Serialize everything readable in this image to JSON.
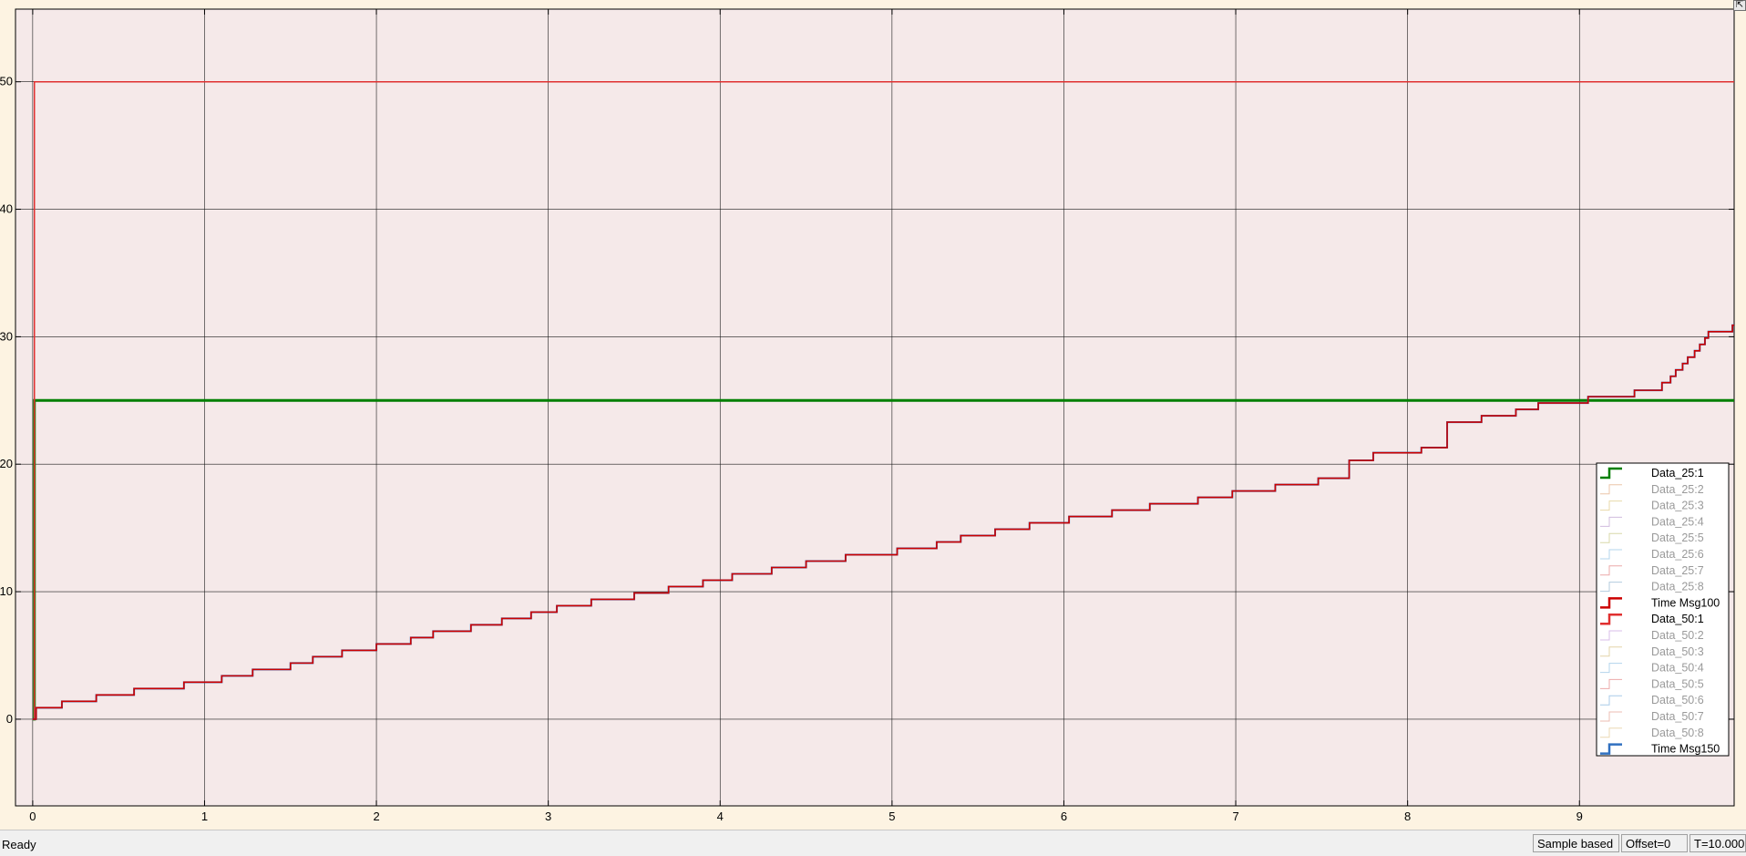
{
  "chart_data": {
    "type": "line",
    "title": "",
    "xlabel": "",
    "ylabel": "",
    "xlim": [
      -0.1,
      9.9
    ],
    "ylim": [
      -6.8,
      55.7
    ],
    "x_ticks": [
      0,
      1,
      2,
      3,
      4,
      5,
      6,
      7,
      8,
      9
    ],
    "x_tick_labels": [
      "0",
      "1",
      "2",
      "3",
      "4",
      "5",
      "6",
      "7",
      "8",
      "9"
    ],
    "y_ticks": [
      0,
      10,
      20,
      30,
      40,
      50
    ],
    "y_tick_labels": [
      "0",
      "10",
      "20",
      "30",
      "40",
      "50"
    ],
    "grid": true,
    "legend_position": "lower-right",
    "background": "#f5e9e9",
    "series": [
      {
        "name": "Data_25:1",
        "color": "#007f00",
        "width": 3,
        "active": true,
        "points": [
          [
            0,
            0
          ],
          [
            0.01,
            25
          ],
          [
            9.9,
            25
          ]
        ]
      },
      {
        "name": "Data_25:2",
        "color": "#e0a070",
        "width": 1,
        "active": false,
        "points": []
      },
      {
        "name": "Data_25:3",
        "color": "#d8c070",
        "width": 1,
        "active": false,
        "points": []
      },
      {
        "name": "Data_25:4",
        "color": "#b090c8",
        "width": 1,
        "active": false,
        "points": []
      },
      {
        "name": "Data_25:5",
        "color": "#c0c070",
        "width": 1,
        "active": false,
        "points": []
      },
      {
        "name": "Data_25:6",
        "color": "#80b8e0",
        "width": 1,
        "active": false,
        "points": []
      },
      {
        "name": "Data_25:7",
        "color": "#e07070",
        "width": 1,
        "active": false,
        "points": []
      },
      {
        "name": "Data_25:8",
        "color": "#80a8c8",
        "width": 1,
        "active": false,
        "points": []
      },
      {
        "name": "Time Msg100",
        "color": "#cc0000",
        "width": 3,
        "active": true,
        "points": [
          [
            0,
            0
          ],
          [
            0.02,
            0.9
          ],
          [
            0.17,
            1.4
          ],
          [
            0.37,
            1.9
          ],
          [
            0.59,
            2.4
          ],
          [
            0.88,
            2.9
          ],
          [
            1.1,
            3.4
          ],
          [
            1.28,
            3.9
          ],
          [
            1.5,
            4.4
          ],
          [
            1.63,
            4.9
          ],
          [
            1.8,
            5.4
          ],
          [
            2.0,
            5.9
          ],
          [
            2.2,
            6.4
          ],
          [
            2.33,
            6.9
          ],
          [
            2.55,
            7.4
          ],
          [
            2.73,
            7.9
          ],
          [
            2.9,
            8.4
          ],
          [
            3.05,
            8.9
          ],
          [
            3.25,
            9.4
          ],
          [
            3.5,
            9.9
          ],
          [
            3.7,
            10.4
          ],
          [
            3.9,
            10.9
          ],
          [
            4.07,
            11.4
          ],
          [
            4.3,
            11.9
          ],
          [
            4.5,
            12.4
          ],
          [
            4.73,
            12.9
          ],
          [
            5.03,
            13.4
          ],
          [
            5.26,
            13.9
          ],
          [
            5.4,
            14.4
          ],
          [
            5.6,
            14.9
          ],
          [
            5.8,
            15.4
          ],
          [
            6.03,
            15.9
          ],
          [
            6.28,
            16.4
          ],
          [
            6.5,
            16.9
          ],
          [
            6.78,
            17.4
          ],
          [
            6.98,
            17.9
          ],
          [
            7.23,
            18.4
          ],
          [
            7.48,
            18.9
          ],
          [
            7.66,
            20.3
          ],
          [
            7.8,
            20.9
          ],
          [
            8.08,
            21.3
          ],
          [
            8.23,
            23.3
          ],
          [
            8.43,
            23.8
          ],
          [
            8.63,
            24.3
          ],
          [
            8.76,
            24.8
          ],
          [
            9.05,
            25.3
          ],
          [
            9.32,
            25.8
          ],
          [
            9.48,
            26.4
          ],
          [
            9.53,
            26.9
          ],
          [
            9.56,
            27.4
          ],
          [
            9.6,
            27.9
          ],
          [
            9.63,
            28.4
          ],
          [
            9.67,
            28.9
          ],
          [
            9.7,
            29.4
          ],
          [
            9.73,
            29.9
          ],
          [
            9.75,
            30.4
          ],
          [
            9.89,
            30.9
          ],
          [
            9.9,
            30.9
          ]
        ]
      },
      {
        "name": "Data_50:1",
        "color": "#e03030",
        "width": 1.5,
        "active": true,
        "points": [
          [
            0,
            0
          ],
          [
            0.01,
            50
          ],
          [
            9.9,
            50
          ]
        ]
      },
      {
        "name": "Data_50:2",
        "color": "#c090d8",
        "width": 1,
        "active": false,
        "points": []
      },
      {
        "name": "Data_50:3",
        "color": "#d0b870",
        "width": 1,
        "active": false,
        "points": []
      },
      {
        "name": "Data_50:4",
        "color": "#80b8e0",
        "width": 1,
        "active": false,
        "points": []
      },
      {
        "name": "Data_50:5",
        "color": "#e07070",
        "width": 1,
        "active": false,
        "points": []
      },
      {
        "name": "Data_50:6",
        "color": "#70a8d8",
        "width": 1,
        "active": false,
        "points": []
      },
      {
        "name": "Data_50:7",
        "color": "#e09080",
        "width": 1,
        "active": false,
        "points": []
      },
      {
        "name": "Data_50:8",
        "color": "#e0c080",
        "width": 1,
        "active": false,
        "points": []
      },
      {
        "name": "Time Msg150",
        "color": "#3070c0",
        "width": 2,
        "active": true,
        "points": [
          [
            0,
            0
          ],
          [
            0.02,
            0.9
          ],
          [
            0.17,
            1.4
          ],
          [
            0.37,
            1.9
          ],
          [
            0.59,
            2.4
          ],
          [
            0.88,
            2.9
          ],
          [
            1.1,
            3.4
          ],
          [
            1.28,
            3.9
          ],
          [
            1.5,
            4.4
          ],
          [
            1.63,
            4.9
          ],
          [
            1.8,
            5.4
          ],
          [
            2.0,
            5.9
          ],
          [
            2.2,
            6.4
          ],
          [
            2.33,
            6.9
          ],
          [
            2.55,
            7.4
          ],
          [
            2.73,
            7.9
          ],
          [
            2.9,
            8.4
          ],
          [
            3.05,
            8.9
          ],
          [
            3.25,
            9.4
          ],
          [
            3.5,
            9.9
          ],
          [
            3.7,
            10.4
          ],
          [
            3.9,
            10.9
          ],
          [
            4.07,
            11.4
          ],
          [
            4.3,
            11.9
          ],
          [
            4.5,
            12.4
          ],
          [
            4.73,
            12.9
          ],
          [
            5.03,
            13.4
          ],
          [
            5.26,
            13.9
          ],
          [
            5.4,
            14.4
          ],
          [
            5.6,
            14.9
          ],
          [
            5.8,
            15.4
          ],
          [
            6.03,
            15.9
          ],
          [
            6.28,
            16.4
          ],
          [
            6.5,
            16.9
          ],
          [
            6.78,
            17.4
          ],
          [
            6.98,
            17.9
          ],
          [
            7.23,
            18.4
          ],
          [
            7.48,
            18.9
          ],
          [
            7.66,
            20.3
          ],
          [
            7.8,
            20.9
          ],
          [
            8.08,
            21.3
          ],
          [
            8.23,
            23.3
          ],
          [
            8.43,
            23.8
          ],
          [
            8.63,
            24.3
          ],
          [
            8.76,
            24.8
          ],
          [
            9.05,
            25.3
          ],
          [
            9.32,
            25.8
          ],
          [
            9.48,
            26.4
          ],
          [
            9.53,
            26.9
          ],
          [
            9.56,
            27.4
          ],
          [
            9.6,
            27.9
          ],
          [
            9.63,
            28.4
          ],
          [
            9.67,
            28.9
          ],
          [
            9.7,
            29.4
          ],
          [
            9.73,
            29.9
          ],
          [
            9.75,
            30.4
          ],
          [
            9.89,
            30.9
          ],
          [
            9.9,
            30.9
          ]
        ]
      }
    ]
  },
  "status_bar": {
    "status": "Ready",
    "sample_mode": "Sample based",
    "offset": "Offset=0",
    "time": "T=10.000"
  },
  "corner_button": {
    "icon": "restore-icon",
    "glyph": "⇱"
  }
}
